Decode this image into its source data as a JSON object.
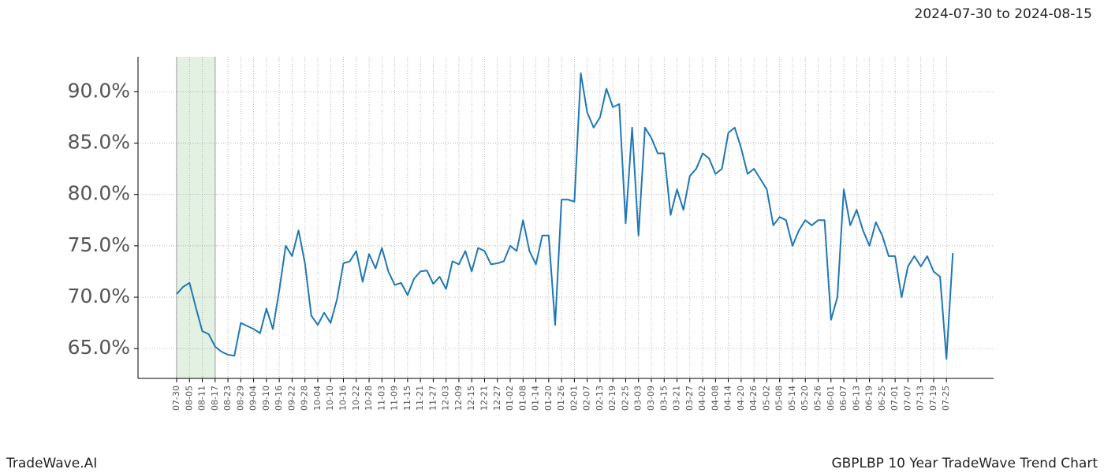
{
  "header": {
    "date_range": "2024-07-30 to 2024-08-15"
  },
  "footer": {
    "brand": "TradeWave.AI",
    "title": "GBPLBP 10 Year TradeWave Trend Chart"
  },
  "chart_data": {
    "type": "line",
    "categories": [
      "07-30",
      null,
      "08-05",
      null,
      "08-11",
      null,
      "08-17",
      null,
      "08-23",
      null,
      "08-29",
      null,
      "09-04",
      null,
      "09-10",
      null,
      "09-16",
      null,
      "09-22",
      null,
      "09-28",
      null,
      "10-04",
      null,
      "10-10",
      null,
      "10-16",
      null,
      "10-22",
      null,
      "10-28",
      null,
      "11-03",
      null,
      "11-09",
      null,
      "11-15",
      null,
      "11-21",
      null,
      "11-27",
      null,
      "12-03",
      null,
      "12-09",
      null,
      "12-15",
      null,
      "12-21",
      null,
      "12-27",
      null,
      "01-02",
      null,
      "01-08",
      null,
      "01-14",
      null,
      "01-20",
      null,
      "01-26",
      null,
      "02-01",
      null,
      "02-07",
      null,
      "02-13",
      null,
      "02-19",
      null,
      "02-25",
      null,
      "03-03",
      null,
      "03-09",
      null,
      "03-15",
      null,
      "03-21",
      null,
      "03-27",
      null,
      "04-02",
      null,
      "04-08",
      null,
      "04-14",
      null,
      "04-20",
      null,
      "04-26",
      null,
      "05-02",
      null,
      "05-08",
      null,
      "05-14",
      null,
      "05-20",
      null,
      "05-26",
      null,
      "06-01",
      null,
      "06-07",
      null,
      "06-13",
      null,
      "06-19",
      null,
      "06-25",
      null,
      "07-01",
      null,
      "07-07",
      null,
      "07-13",
      null,
      "07-19",
      null,
      "07-25",
      null
    ],
    "values": [
      70.3,
      71.0,
      71.4,
      69.0,
      66.7,
      66.4,
      65.2,
      64.7,
      64.4,
      64.3,
      67.5,
      67.2,
      66.9,
      66.5,
      68.9,
      66.9,
      70.7,
      75.0,
      74.0,
      76.5,
      73.3,
      68.2,
      67.3,
      68.5,
      67.5,
      69.8,
      73.3,
      73.5,
      74.5,
      71.5,
      74.2,
      72.8,
      74.8,
      72.5,
      71.2,
      71.4,
      70.2,
      71.8,
      72.5,
      72.6,
      71.3,
      72.0,
      70.8,
      73.5,
      73.2,
      74.5,
      72.5,
      74.8,
      74.5,
      73.2,
      73.3,
      73.5,
      75.0,
      74.5,
      77.5,
      74.5,
      73.2,
      76.0,
      76.0,
      67.3,
      79.5,
      79.5,
      79.3,
      91.8,
      88.0,
      86.5,
      87.5,
      90.3,
      88.5,
      88.8,
      77.2,
      86.5,
      76.0,
      86.5,
      85.5,
      84.0,
      84.0,
      78.0,
      80.5,
      78.5,
      81.8,
      82.5,
      84.0,
      83.5,
      82.0,
      82.5,
      86.0,
      86.5,
      84.5,
      82.0,
      82.5,
      81.5,
      80.5,
      77.0,
      77.8,
      77.5,
      75.0,
      76.5,
      77.5,
      77.0,
      77.5,
      77.5,
      67.8,
      70.0,
      80.5,
      77.0,
      78.5,
      76.5,
      75.0,
      77.3,
      76.0,
      74.0,
      74.0,
      70.0,
      73.0,
      74.0,
      73.0,
      74.0,
      72.5,
      72.0,
      64.0,
      74.3
    ],
    "color": "#1f77b4",
    "ylim": [
      62.1,
      93.4
    ],
    "yticks": [
      {
        "value": 65,
        "label": "65.0%"
      },
      {
        "value": 70,
        "label": "70.0%"
      },
      {
        "value": 75,
        "label": "75.0%"
      },
      {
        "value": 80,
        "label": "80.0%"
      },
      {
        "value": 85,
        "label": "85.0%"
      },
      {
        "value": 90,
        "label": "90.0%"
      }
    ],
    "grid": true,
    "highlight": {
      "from": "07-30",
      "to": "08-17",
      "color": "#e3f1e3"
    }
  }
}
